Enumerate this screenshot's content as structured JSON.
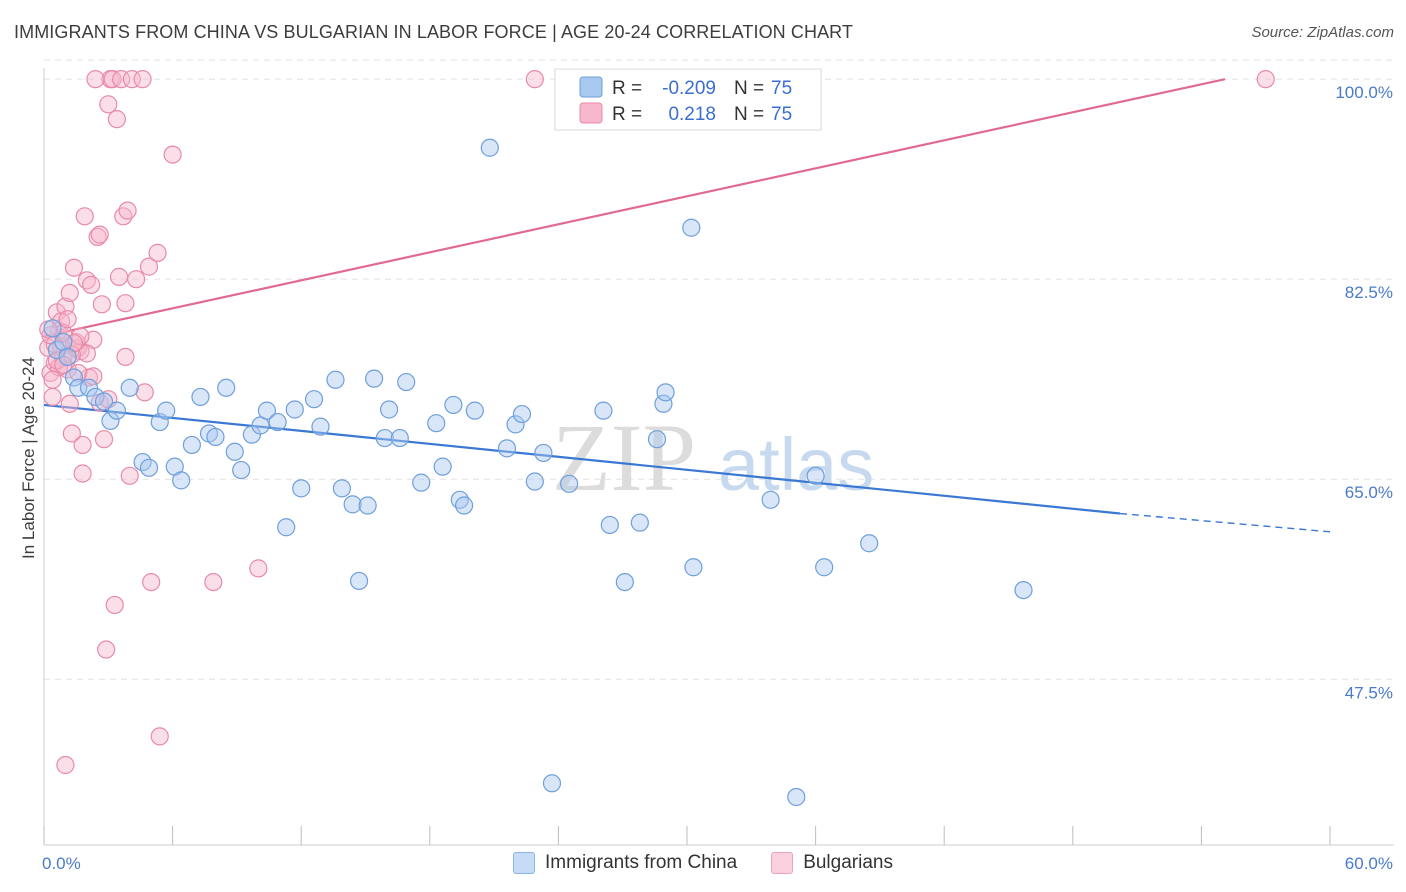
{
  "title": "IMMIGRANTS FROM CHINA VS BULGARIAN IN LABOR FORCE | AGE 20-24 CORRELATION CHART",
  "source": "Source: ZipAtlas.com",
  "watermark": {
    "zip": "ZIP",
    "atlas": "atlas"
  },
  "legend": {
    "r_label": "R =",
    "n_label": "N =",
    "rows": [
      {
        "r": "-0.209",
        "n": "75"
      },
      {
        "r": "0.218",
        "n": "75"
      }
    ]
  },
  "bottom_legend": [
    "Immigrants from China",
    "Bulgarians"
  ],
  "colors": {
    "china_fill": "#a9c8ef",
    "china_stroke": "#6f9fdc",
    "china_line": "#3a78d4",
    "bulg_fill": "#f6b8cc",
    "bulg_stroke": "#e88aa9",
    "bulg_line": "#e06a94",
    "tick_text": "#4a7bc8",
    "grid": "#e2e2e2"
  },
  "chart_data": {
    "type": "scatter",
    "title": "IMMIGRANTS FROM CHINA VS BULGARIAN IN LABOR FORCE | AGE 20-24 CORRELATION CHART",
    "xlabel": "",
    "ylabel": "In Labor Force | Age 20-24",
    "xlim": [
      0,
      60
    ],
    "ylim": [
      33,
      101.5
    ],
    "y_ticks": [
      47.5,
      65.0,
      82.5,
      100.0
    ],
    "y_tick_labels": [
      "47.5%",
      "65.0%",
      "82.5%",
      "100.0%"
    ],
    "x_tick_labels": [
      "0.0%",
      "60.0%"
    ],
    "grid": true,
    "legend_position": "top-center",
    "series": [
      {
        "name": "Immigrants from China",
        "r": -0.209,
        "n": 75,
        "trend": {
          "x": [
            0,
            50.2
          ],
          "y": [
            71.5,
            62.0
          ],
          "dashed_to": [
            60,
            60.4
          ]
        },
        "points": [
          [
            0.4,
            78.2
          ],
          [
            0.6,
            76.3
          ],
          [
            0.9,
            77.0
          ],
          [
            1.1,
            75.7
          ],
          [
            1.4,
            73.9
          ],
          [
            1.6,
            73.0
          ],
          [
            2.1,
            73.0
          ],
          [
            2.4,
            72.2
          ],
          [
            2.8,
            71.8
          ],
          [
            3.1,
            70.1
          ],
          [
            3.4,
            71.0
          ],
          [
            4.0,
            73.0
          ],
          [
            4.6,
            66.5
          ],
          [
            4.9,
            66.0
          ],
          [
            5.4,
            70.0
          ],
          [
            5.7,
            71.0
          ],
          [
            6.1,
            66.1
          ],
          [
            6.4,
            64.9
          ],
          [
            6.9,
            68.0
          ],
          [
            7.3,
            72.2
          ],
          [
            7.7,
            69.0
          ],
          [
            8.0,
            68.7
          ],
          [
            8.5,
            73.0
          ],
          [
            8.9,
            67.4
          ],
          [
            9.2,
            65.8
          ],
          [
            9.7,
            68.9
          ],
          [
            10.1,
            69.7
          ],
          [
            10.4,
            71.0
          ],
          [
            10.9,
            70.0
          ],
          [
            11.3,
            60.8
          ],
          [
            11.7,
            71.1
          ],
          [
            12.0,
            64.2
          ],
          [
            12.6,
            72.0
          ],
          [
            12.9,
            69.6
          ],
          [
            13.6,
            73.7
          ],
          [
            13.9,
            64.2
          ],
          [
            14.4,
            62.8
          ],
          [
            14.7,
            56.1
          ],
          [
            15.1,
            62.7
          ],
          [
            15.4,
            73.8
          ],
          [
            15.9,
            68.6
          ],
          [
            16.1,
            71.1
          ],
          [
            16.6,
            68.6
          ],
          [
            16.9,
            73.5
          ],
          [
            17.6,
            64.7
          ],
          [
            18.3,
            69.9
          ],
          [
            18.6,
            66.1
          ],
          [
            19.1,
            71.5
          ],
          [
            19.4,
            63.2
          ],
          [
            19.6,
            62.7
          ],
          [
            20.1,
            71.0
          ],
          [
            21.6,
            67.7
          ],
          [
            22.0,
            69.8
          ],
          [
            22.3,
            70.7
          ],
          [
            22.9,
            64.8
          ],
          [
            23.3,
            67.3
          ],
          [
            23.7,
            38.4
          ],
          [
            24.5,
            64.6
          ],
          [
            26.1,
            71.0
          ],
          [
            26.4,
            61.0
          ],
          [
            27.1,
            56.0
          ],
          [
            27.8,
            61.2
          ],
          [
            28.6,
            68.5
          ],
          [
            28.9,
            71.6
          ],
          [
            29.0,
            72.6
          ],
          [
            30.2,
            87.0
          ],
          [
            30.3,
            57.3
          ],
          [
            32.6,
            99.9
          ],
          [
            33.9,
            63.2
          ],
          [
            35.1,
            37.2
          ],
          [
            36.4,
            57.3
          ],
          [
            38.5,
            59.4
          ],
          [
            45.7,
            55.3
          ],
          [
            20.8,
            94.0
          ],
          [
            36.0,
            65.3
          ]
        ]
      },
      {
        "name": "Bulgarians",
        "r": 0.218,
        "n": 75,
        "trend": {
          "x": [
            0,
            55.1
          ],
          "y": [
            77.5,
            100.0
          ]
        },
        "points": [
          [
            0.2,
            76.5
          ],
          [
            0.3,
            74.3
          ],
          [
            0.4,
            72.2
          ],
          [
            0.5,
            75.2
          ],
          [
            0.6,
            79.6
          ],
          [
            0.7,
            78.0
          ],
          [
            0.8,
            76.6
          ],
          [
            0.9,
            75.6
          ],
          [
            1.0,
            80.1
          ],
          [
            1.1,
            74.6
          ],
          [
            1.2,
            71.6
          ],
          [
            1.3,
            69.0
          ],
          [
            1.4,
            83.5
          ],
          [
            1.5,
            76.4
          ],
          [
            1.6,
            76.5
          ],
          [
            1.7,
            76.2
          ],
          [
            1.8,
            65.5
          ],
          [
            1.9,
            88.0
          ],
          [
            2.0,
            82.4
          ],
          [
            2.1,
            73.9
          ],
          [
            2.2,
            82.0
          ],
          [
            2.3,
            77.2
          ],
          [
            2.5,
            86.2
          ],
          [
            2.6,
            86.4
          ],
          [
            2.7,
            80.3
          ],
          [
            2.8,
            68.5
          ],
          [
            2.9,
            50.1
          ],
          [
            3.0,
            97.8
          ],
          [
            3.1,
            100.0
          ],
          [
            3.2,
            100.0
          ],
          [
            3.4,
            96.5
          ],
          [
            3.5,
            82.7
          ],
          [
            3.6,
            100.0
          ],
          [
            3.7,
            88.0
          ],
          [
            3.8,
            75.7
          ],
          [
            3.9,
            88.5
          ],
          [
            4.1,
            100.0
          ],
          [
            4.3,
            82.5
          ],
          [
            4.6,
            100.0
          ],
          [
            4.7,
            72.6
          ],
          [
            4.9,
            83.6
          ],
          [
            5.0,
            56.0
          ],
          [
            5.3,
            84.8
          ],
          [
            5.4,
            42.5
          ],
          [
            6.0,
            93.4
          ],
          [
            7.9,
            56.0
          ],
          [
            10.0,
            57.2
          ],
          [
            22.9,
            100.0
          ],
          [
            57.0,
            100.0
          ],
          [
            2.4,
            100.0
          ],
          [
            3.3,
            54.0
          ],
          [
            4.0,
            65.3
          ],
          [
            1.0,
            40.0
          ],
          [
            0.8,
            78.8
          ],
          [
            0.5,
            76.8
          ],
          [
            0.9,
            77.8
          ],
          [
            1.2,
            81.3
          ],
          [
            0.7,
            74.8
          ],
          [
            1.5,
            77.0
          ],
          [
            2.0,
            76.0
          ],
          [
            0.4,
            73.7
          ],
          [
            1.1,
            79.0
          ],
          [
            1.6,
            74.3
          ],
          [
            0.3,
            77.6
          ],
          [
            2.3,
            74.0
          ],
          [
            0.6,
            75.4
          ],
          [
            1.3,
            75.9
          ],
          [
            3.8,
            80.4
          ],
          [
            2.6,
            71.7
          ],
          [
            1.7,
            77.5
          ],
          [
            0.9,
            75.0
          ],
          [
            1.8,
            68.0
          ],
          [
            3.0,
            72.0
          ],
          [
            0.2,
            78.1
          ],
          [
            1.4,
            76.9
          ]
        ]
      }
    ]
  }
}
